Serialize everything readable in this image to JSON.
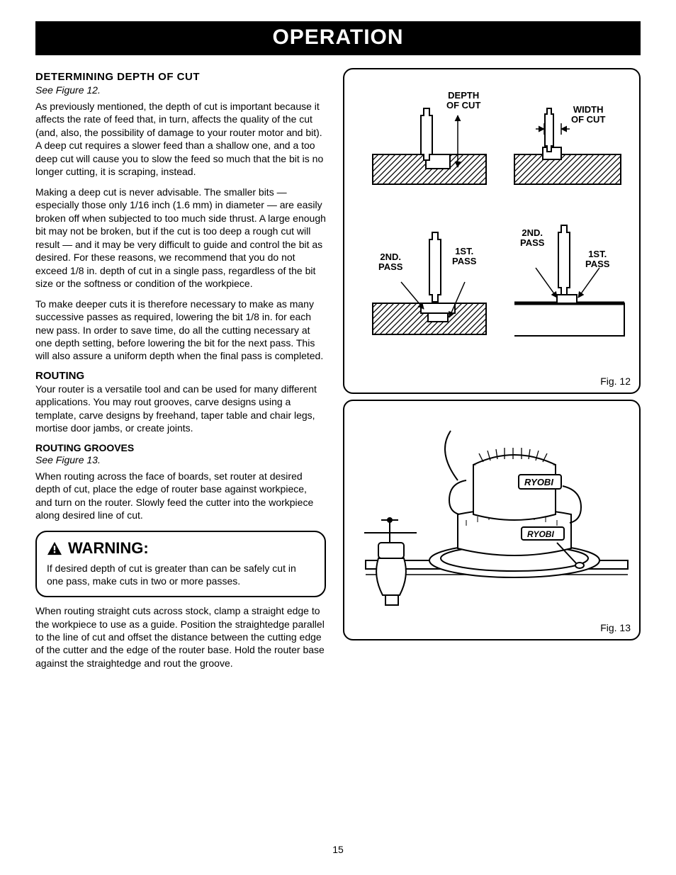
{
  "banner": "OPERATION",
  "page_number": "15",
  "left": {
    "h_depth": "DETERMINING DEPTH OF CUT",
    "see12": "See Figure 12.",
    "p1": "As previously mentioned, the depth of cut is important because it affects the rate of feed that, in turn, affects the quality of the cut (and, also, the possibility of damage to your router motor and bit). A deep cut requires a slower feed than a shallow one, and a too deep cut will cause you to slow the feed so much that the bit is no longer cutting, it is scraping, instead.",
    "p2": "Making a deep cut is never advisable. The smaller bits — especially those only 1/16 inch (1.6 mm) in diameter — are easily broken off when subjected to too much side thrust. A large enough bit may not be broken, but if the cut is too deep a rough cut will result — and it may be very difficult to guide and control the bit as desired. For these reasons, we recommend that you do not exceed 1/8 in. depth of cut in a single pass, regardless of the bit size or the softness or condition of the workpiece.",
    "p3": "To make deeper cuts it is therefore necessary to make as many successive passes as required, lowering the bit 1/8 in. for each new pass. In order to save time, do all the cutting necessary at one depth setting, before lowering the bit for the next pass. This will also assure a uniform depth when the final pass is completed.",
    "h_routing": "ROUTING",
    "p4": "Your router is a versatile tool and can be used for many different applications. You may rout grooves, carve designs using a template, carve designs by freehand, taper table and chair legs, mortise door jambs, or create joints.",
    "h_grooves": "ROUTING GROOVES",
    "see13": "See Figure 13.",
    "p5": "When routing across the face of boards, set router at desired depth of cut, place the edge of router base against workpiece, and turn on the router. Slowly feed the cutter into the workpiece along desired line of cut.",
    "warning_label": "WARNING:",
    "warning_body": "If desired depth of cut is greater than can be safely cut in one pass, make cuts in two or more passes.",
    "p6": "When routing straight cuts across stock, clamp a straight edge to the workpiece to use as a guide. Position the straightedge parallel to the line of cut and offset the distance between the cutting edge of the cutter and the edge of the router base. Hold the router base against the straightedge and rout the groove."
  },
  "fig12": {
    "caption": "Fig. 12",
    "labels": {
      "depth": "DEPTH\nOF CUT",
      "width": "WIDTH\nOF CUT",
      "pass2a": "2ND.\nPASS",
      "pass1a": "1ST.\nPASS",
      "pass2b": "2ND.\nPASS",
      "pass1b": "1ST.\nPASS"
    },
    "styles": {
      "border_color": "#000000",
      "hatch_stroke": "#000000",
      "line_stroke": "#000000",
      "bg": "#ffffff"
    }
  },
  "fig13": {
    "caption": "Fig. 13",
    "brand": "RYOBI",
    "styles": {
      "border_color": "#000000",
      "line_stroke": "#000000",
      "bg": "#ffffff"
    }
  }
}
